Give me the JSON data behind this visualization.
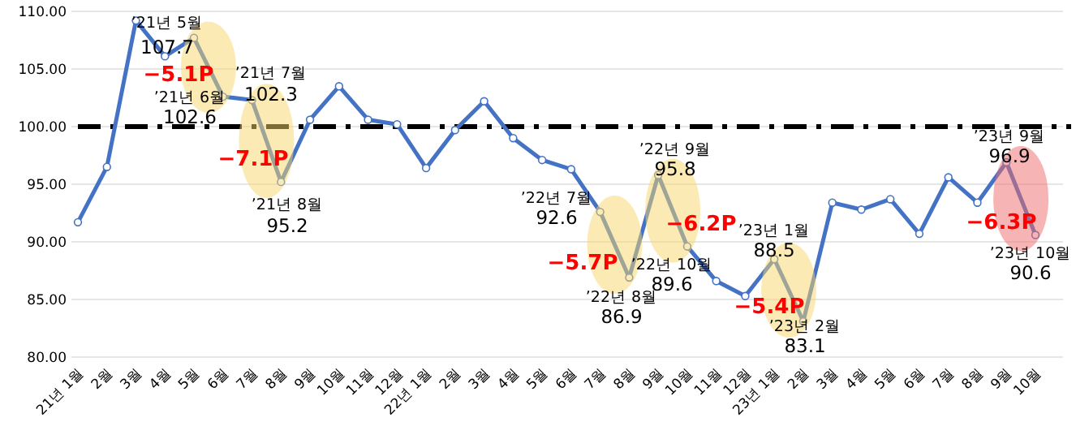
{
  "chart_data": {
    "type": "line",
    "categories": [
      "21년 1월",
      "2월",
      "3월",
      "4월",
      "5월",
      "6월",
      "7월",
      "8월",
      "9월",
      "10월",
      "11월",
      "12월",
      "22년 1월",
      "2월",
      "3월",
      "4월",
      "5월",
      "6월",
      "7월",
      "8월",
      "9월",
      "10월",
      "11월",
      "12월",
      "23년 1월",
      "2월",
      "3월",
      "4월",
      "5월",
      "6월",
      "7월",
      "8월",
      "9월",
      "10월"
    ],
    "series": [
      {
        "color": "#4472c4",
        "values": [
          91.7,
          96.5,
          109.2,
          106.1,
          107.7,
          102.6,
          102.3,
          95.2,
          100.6,
          103.5,
          100.6,
          100.2,
          96.4,
          99.7,
          102.2,
          99.0,
          97.1,
          96.3,
          92.6,
          86.9,
          95.8,
          89.6,
          86.6,
          85.3,
          88.5,
          83.1,
          93.4,
          92.8,
          93.7,
          90.7,
          95.6,
          93.4,
          96.9,
          90.6
        ],
        "value_labels": [
          null,
          null,
          null,
          null,
          "107.7",
          "102.6",
          "102.3",
          "95.2",
          null,
          null,
          null,
          null,
          null,
          null,
          null,
          null,
          null,
          null,
          "92.6",
          "86.9",
          "95.8",
          "89.6",
          null,
          null,
          "88.5",
          "83.1",
          null,
          null,
          null,
          null,
          null,
          null,
          "96.9",
          "90.6"
        ]
      }
    ],
    "ylim": [
      80,
      110
    ],
    "yticks": [
      {
        "value": 80,
        "label": "80.00"
      },
      {
        "value": 85,
        "label": "85.00"
      },
      {
        "value": 90,
        "label": "90.00"
      },
      {
        "value": 95,
        "label": "95.00"
      },
      {
        "value": 100,
        "label": "100.00"
      },
      {
        "value": 105,
        "label": "105.00"
      },
      {
        "value": 110,
        "label": "110.00"
      }
    ],
    "grid": "y",
    "marker": "circle",
    "line_style": "solid",
    "ref_lines": [
      {
        "axis": "y",
        "value": 100,
        "color": "#000000",
        "line_style": "dashed"
      }
    ],
    "annotations": [
      "’21년 5월",
      "’21년 6월",
      "’21년 7월",
      "’21년 8월",
      "’22년 7월",
      "’22년 8월",
      "’22년 9월",
      "’22년 10월",
      "’23년 1월",
      "’23년 2월",
      "’23년 9월",
      "’23년 10월",
      "−5.1P",
      "−7.1P",
      "−5.7P",
      "−6.2P",
      "−5.4P",
      "−6.3P"
    ]
  }
}
